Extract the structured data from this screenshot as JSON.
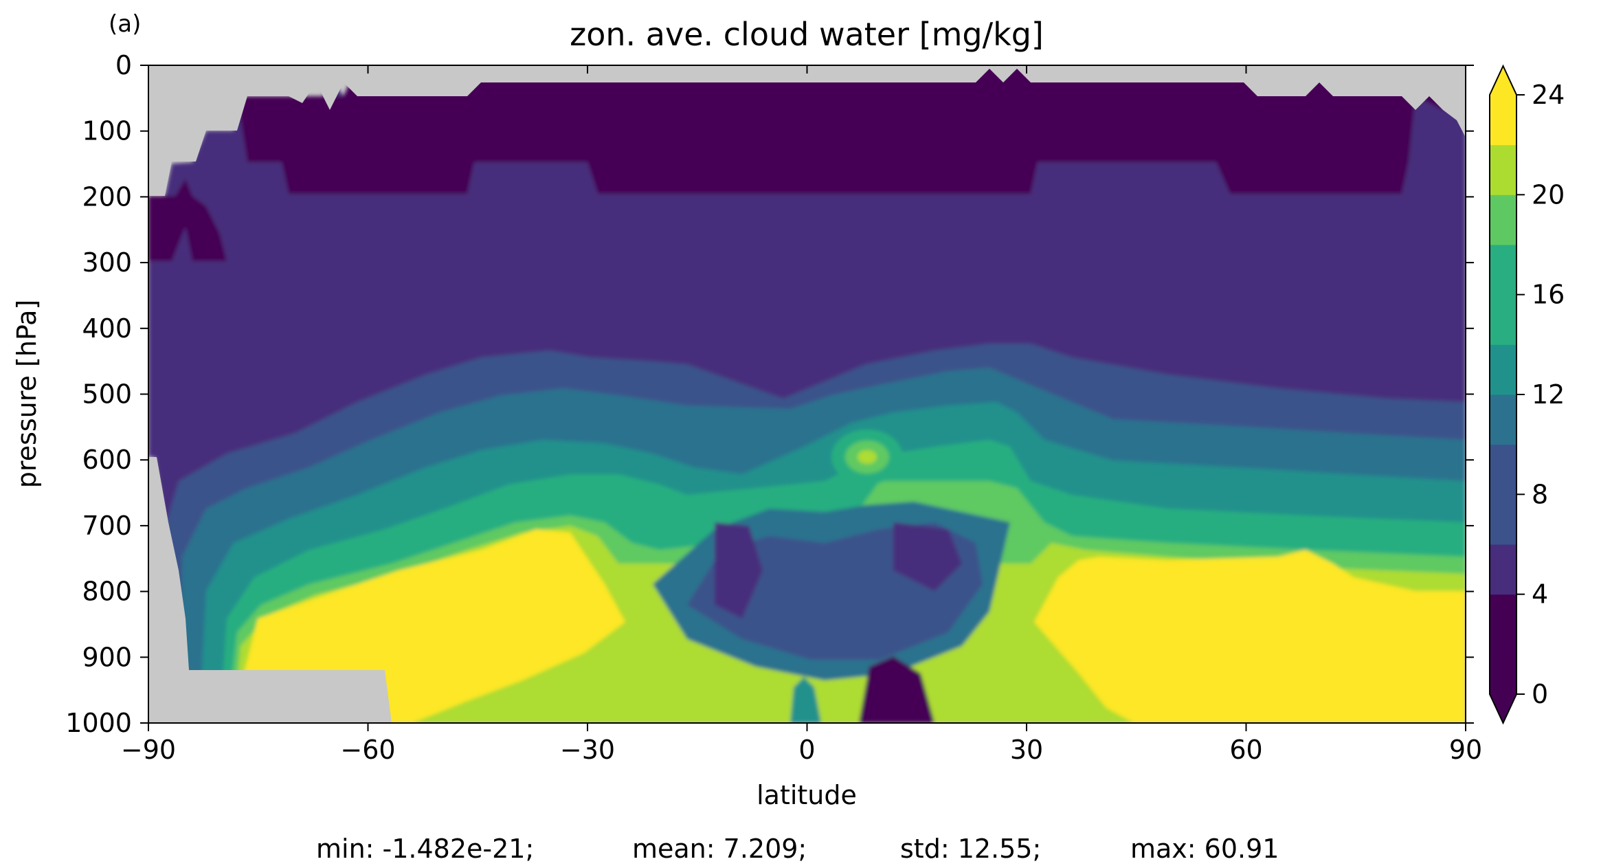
{
  "chart_data": {
    "type": "contour",
    "panel_label": "(a)",
    "title": "zon. ave. cloud water [mg/kg]",
    "xlabel": "latitude",
    "ylabel": "pressure [hPa]",
    "xlim": [
      -90,
      90
    ],
    "ylim": [
      1000,
      0
    ],
    "y_inverted": true,
    "x_ticks": [
      -90,
      -60,
      -30,
      0,
      30,
      60,
      90
    ],
    "x_tick_labels": [
      "−90",
      "−60",
      "−30",
      "0",
      "30",
      "60",
      "90"
    ],
    "y_ticks": [
      0,
      100,
      200,
      300,
      400,
      500,
      600,
      700,
      800,
      900,
      1000
    ],
    "y_tick_labels": [
      "0",
      "100",
      "200",
      "300",
      "400",
      "500",
      "600",
      "700",
      "800",
      "900",
      "1000"
    ],
    "missing_color": "#c8c8c8",
    "colorbar": {
      "levels": [
        0,
        2,
        4,
        6,
        8,
        10,
        12,
        14,
        16,
        18,
        20,
        22,
        24
      ],
      "tick_values": [
        0,
        4,
        8,
        12,
        16,
        20,
        24
      ],
      "tick_labels": [
        "0",
        "4",
        "8",
        "12",
        "16",
        "20",
        "24"
      ],
      "extend": "both",
      "colors": [
        "#440154",
        "#472d7b",
        "#3b528b",
        "#2c728e",
        "#21918c",
        "#28ae80",
        "#5ec962",
        "#addc30",
        "#fde725"
      ]
    },
    "summary": {
      "min": "min: -1.482e-21;",
      "mean": "mean: 7.209;",
      "std": "std: 12.55;",
      "max": "max: 60.91"
    }
  }
}
